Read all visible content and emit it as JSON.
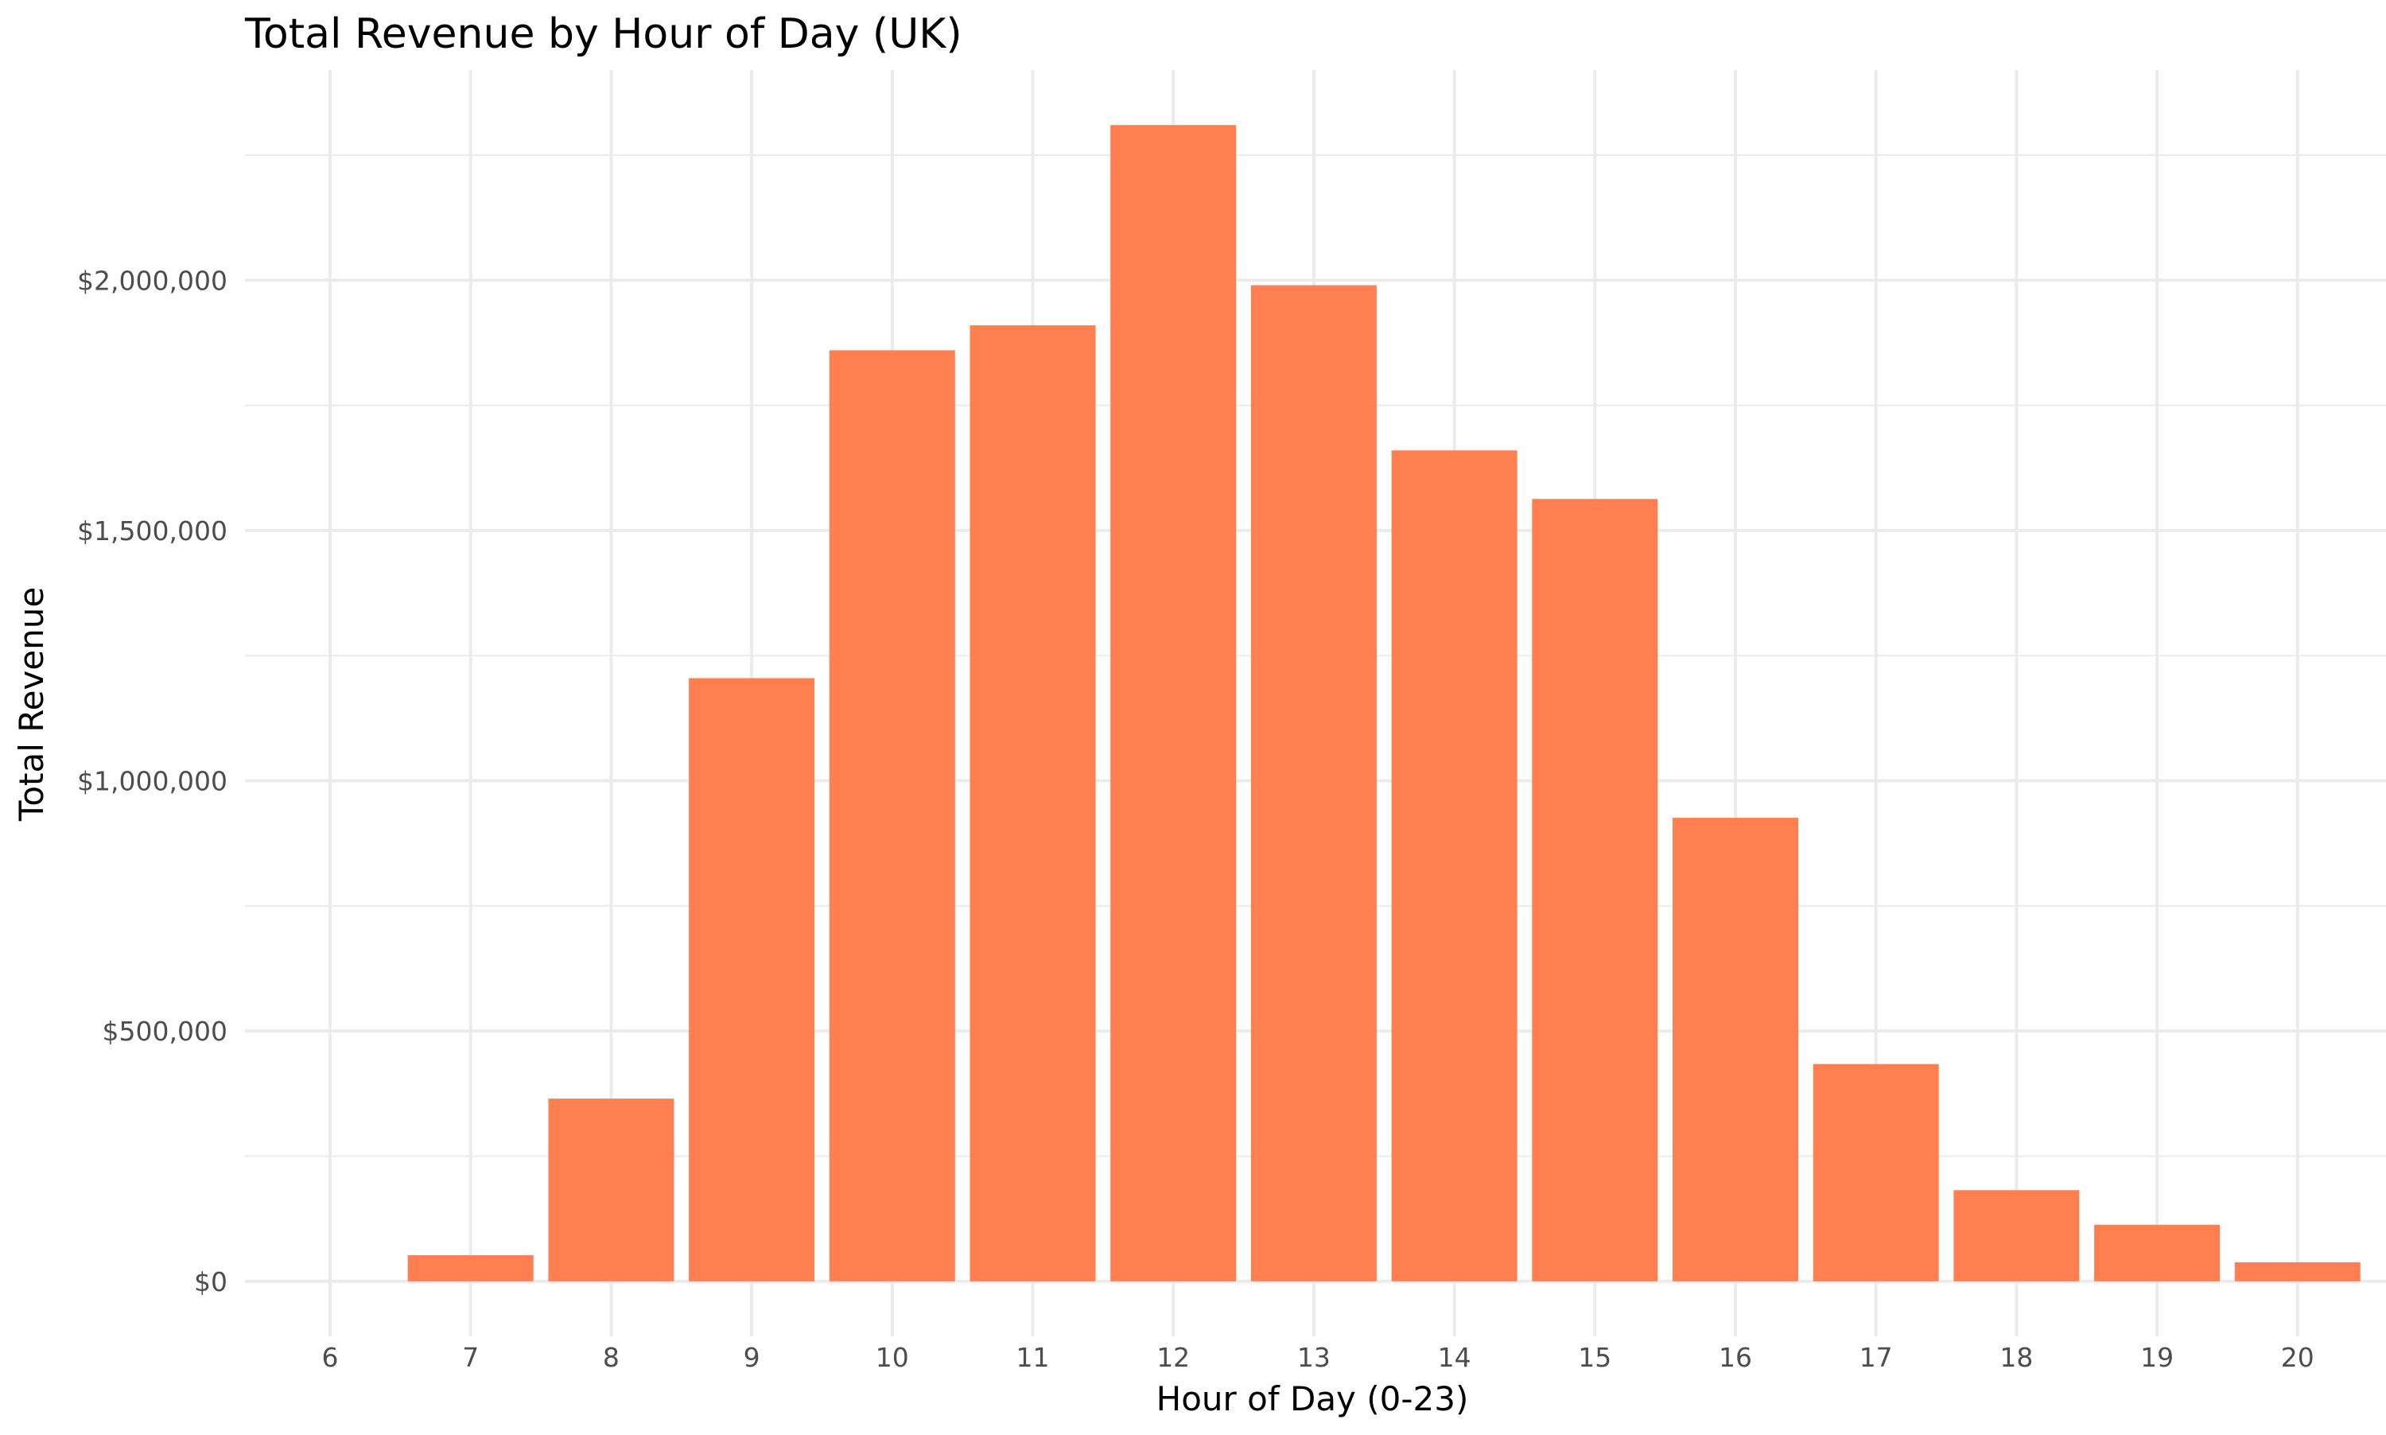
{
  "chart_data": {
    "type": "bar",
    "title": "Total Revenue by Hour of Day (UK)",
    "xlabel": "Hour of Day (0-23)",
    "ylabel": "Total Revenue",
    "categories": [
      "6",
      "7",
      "8",
      "9",
      "10",
      "11",
      "12",
      "13",
      "14",
      "15",
      "16",
      "17",
      "18",
      "19",
      "20"
    ],
    "values": [
      0,
      52000,
      365000,
      1205000,
      1860000,
      1910000,
      2310000,
      1990000,
      1660000,
      1563000,
      926000,
      434000,
      182000,
      113000,
      38000
    ],
    "ylim": [
      -110000,
      2420000
    ],
    "yticks": [
      0,
      500000,
      1000000,
      1500000,
      2000000
    ],
    "ytick_labels": [
      "$0",
      "$500,000",
      "$1,000,000",
      "$1,500,000",
      "$2,000,000"
    ],
    "bar_color": "#FF7F50",
    "grid": true,
    "legend": "none"
  }
}
